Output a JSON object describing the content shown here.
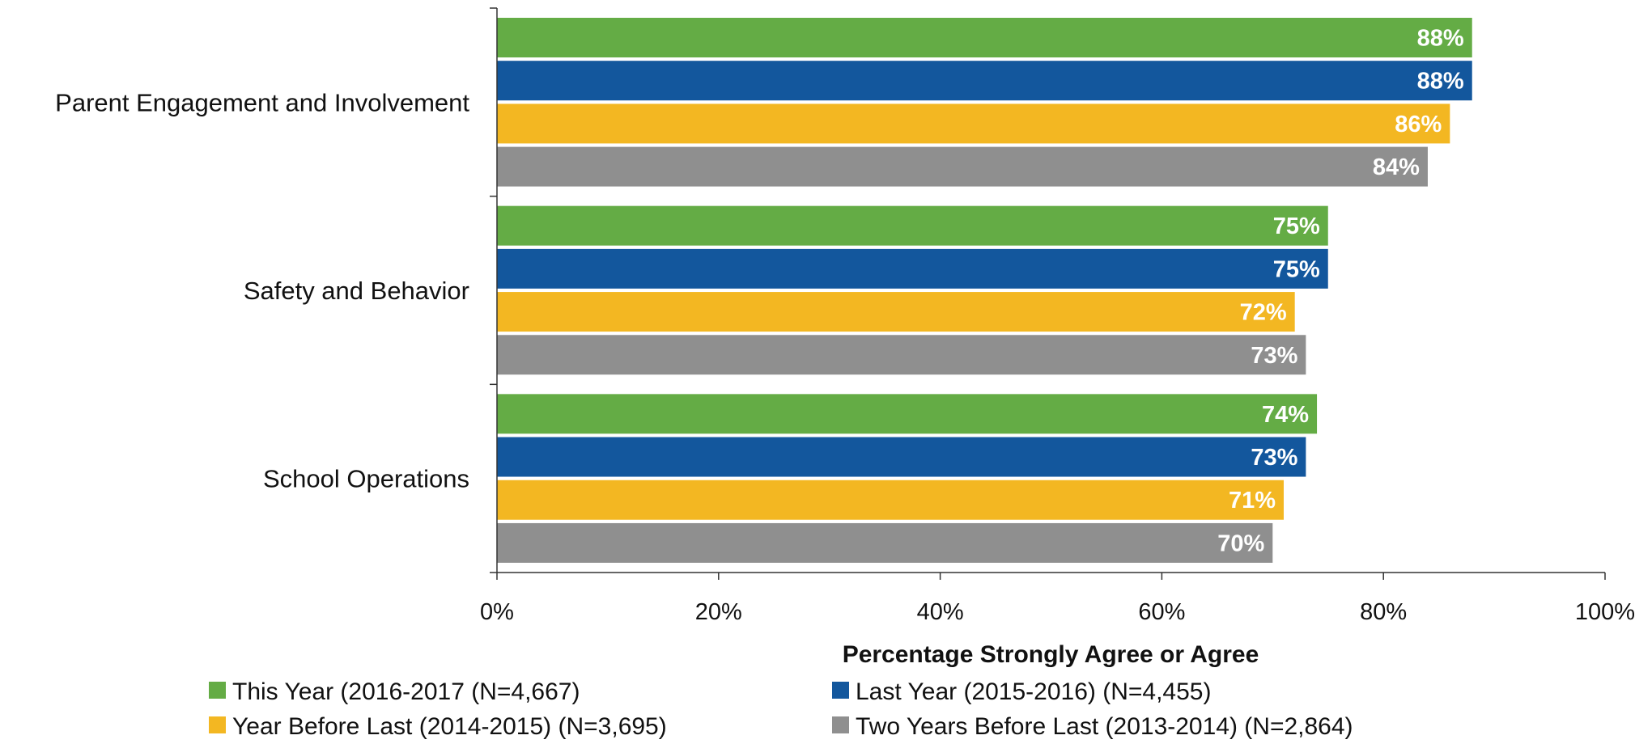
{
  "chart_data": {
    "type": "bar",
    "orientation": "horizontal",
    "categories": [
      "Parent Engagement and Involvement",
      "Safety and Behavior",
      "School Operations"
    ],
    "series": [
      {
        "name": "This Year (2016-2017 (N=4,667)",
        "color": "#64AC45",
        "values": [
          88,
          75,
          74
        ]
      },
      {
        "name": "Last Year (2015-2016) (N=4,455)",
        "color": "#13579D",
        "values": [
          88,
          75,
          73
        ]
      },
      {
        "name": "Year Before Last (2014-2015) (N=3,695)",
        "color": "#F3B722",
        "values": [
          86,
          72,
          71
        ]
      },
      {
        "name": "Two Years Before Last (2013-2014) (N=2,864)",
        "color": "#8F8F8F",
        "values": [
          84,
          73,
          70
        ]
      }
    ],
    "xlabel": "Percentage Strongly Agree or Agree",
    "ylabel": "",
    "xlim": [
      0,
      100
    ],
    "xticks": [
      0,
      20,
      40,
      60,
      80,
      100
    ],
    "tick_suffix": "%",
    "value_suffix": "%",
    "grid": false,
    "legend_position": "bottom"
  }
}
